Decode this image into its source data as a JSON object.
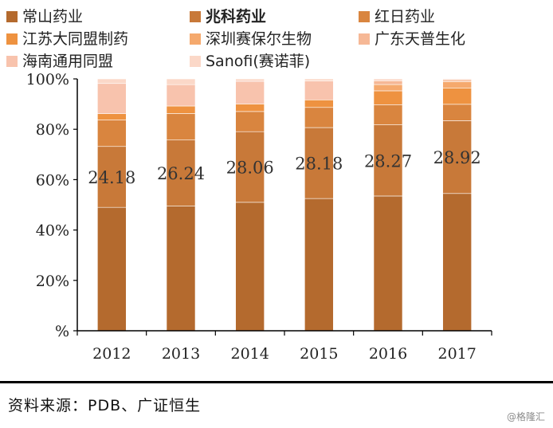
{
  "chart_data": {
    "type": "bar",
    "stacked": true,
    "percent": true,
    "categories": [
      "2012",
      "2013",
      "2014",
      "2015",
      "2016",
      "2017"
    ],
    "series": [
      {
        "name": "常山药业",
        "color": "#b46a2e",
        "values": [
          49,
          49.5,
          51,
          52.5,
          53.5,
          54.5
        ]
      },
      {
        "name": "兆科药业",
        "color": "#c87939",
        "values": [
          24.18,
          26.24,
          28.06,
          28.18,
          28.27,
          28.92
        ]
      },
      {
        "name": "红日药业",
        "color": "#d9853f",
        "values": [
          10.5,
          10.5,
          8,
          8,
          8,
          6.5
        ]
      },
      {
        "name": "江苏大同盟制药",
        "color": "#ee9240",
        "values": [
          2.5,
          3,
          3,
          3,
          5.5,
          6.5
        ]
      },
      {
        "name": "深圳赛保尔生物",
        "color": "#f5a96d",
        "values": [
          0,
          0,
          0,
          0,
          2.5,
          2.5
        ]
      },
      {
        "name": "广东天普生化",
        "color": "#f6b896",
        "values": [
          0,
          0,
          0,
          0,
          1.5,
          0.7
        ]
      },
      {
        "name": "海南通用同盟",
        "color": "#f8c3ad",
        "values": [
          12,
          8.5,
          9,
          7.5,
          0,
          0
        ]
      },
      {
        "name": "Sanofi(赛诺菲)",
        "color": "#fbd8c8",
        "values": [
          1.82,
          2.26,
          0.94,
          0.82,
          0.73,
          0.38
        ]
      }
    ],
    "bold_series": "兆科药业",
    "data_labels": [
      "24.18",
      "26.24",
      "28.06",
      "28.18",
      "28.27",
      "28.92"
    ],
    "ylim": [
      0,
      100
    ],
    "yticks": [
      "%",
      "20%",
      "40%",
      "60%",
      "80%",
      "100%"
    ],
    "legend_position": "top",
    "grid": false
  },
  "source_text": "资料来源：PDB、广证恒生",
  "watermark": "@格隆汇"
}
